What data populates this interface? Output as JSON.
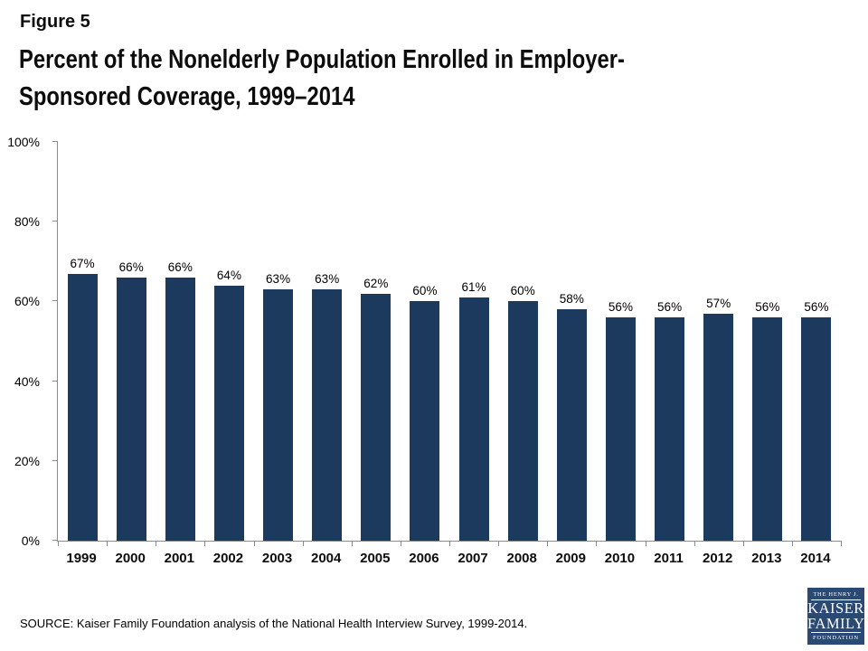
{
  "header": {
    "figure_label": "Figure 5",
    "title_line1": "Percent of the Nonelderly Population Enrolled in Employer-",
    "title_line2": "Sponsored Coverage, 1999–2014"
  },
  "chart_data": {
    "type": "bar",
    "title": "Percent of the Nonelderly Population Enrolled in Employer-Sponsored Coverage, 1999–2014",
    "categories": [
      "1999",
      "2000",
      "2001",
      "2002",
      "2003",
      "2004",
      "2005",
      "2006",
      "2007",
      "2008",
      "2009",
      "2010",
      "2011",
      "2012",
      "2013",
      "2014"
    ],
    "values": [
      67,
      66,
      66,
      64,
      63,
      63,
      62,
      60,
      61,
      60,
      58,
      56,
      56,
      57,
      56,
      56
    ],
    "value_labels": [
      "67%",
      "66%",
      "66%",
      "64%",
      "63%",
      "63%",
      "62%",
      "60%",
      "61%",
      "60%",
      "58%",
      "56%",
      "56%",
      "57%",
      "56%",
      "56%"
    ],
    "xlabel": "",
    "ylabel": "",
    "ylim": [
      0,
      100
    ],
    "ytick_labels": [
      "0%",
      "20%",
      "40%",
      "60%",
      "80%",
      "100%"
    ],
    "grid": false,
    "legend": false,
    "bar_color": "#1b3a5e",
    "axis_color": "#8c8c8c"
  },
  "footer": {
    "source": "SOURCE: Kaiser Family Foundation analysis of the National Health Interview Survey, 1999-2014.",
    "logo": {
      "line1": "THE HENRY J.",
      "line2": "KAISER",
      "line3": "FAMILY",
      "line4": "FOUNDATION",
      "bg_color": "#2a4a73"
    }
  }
}
